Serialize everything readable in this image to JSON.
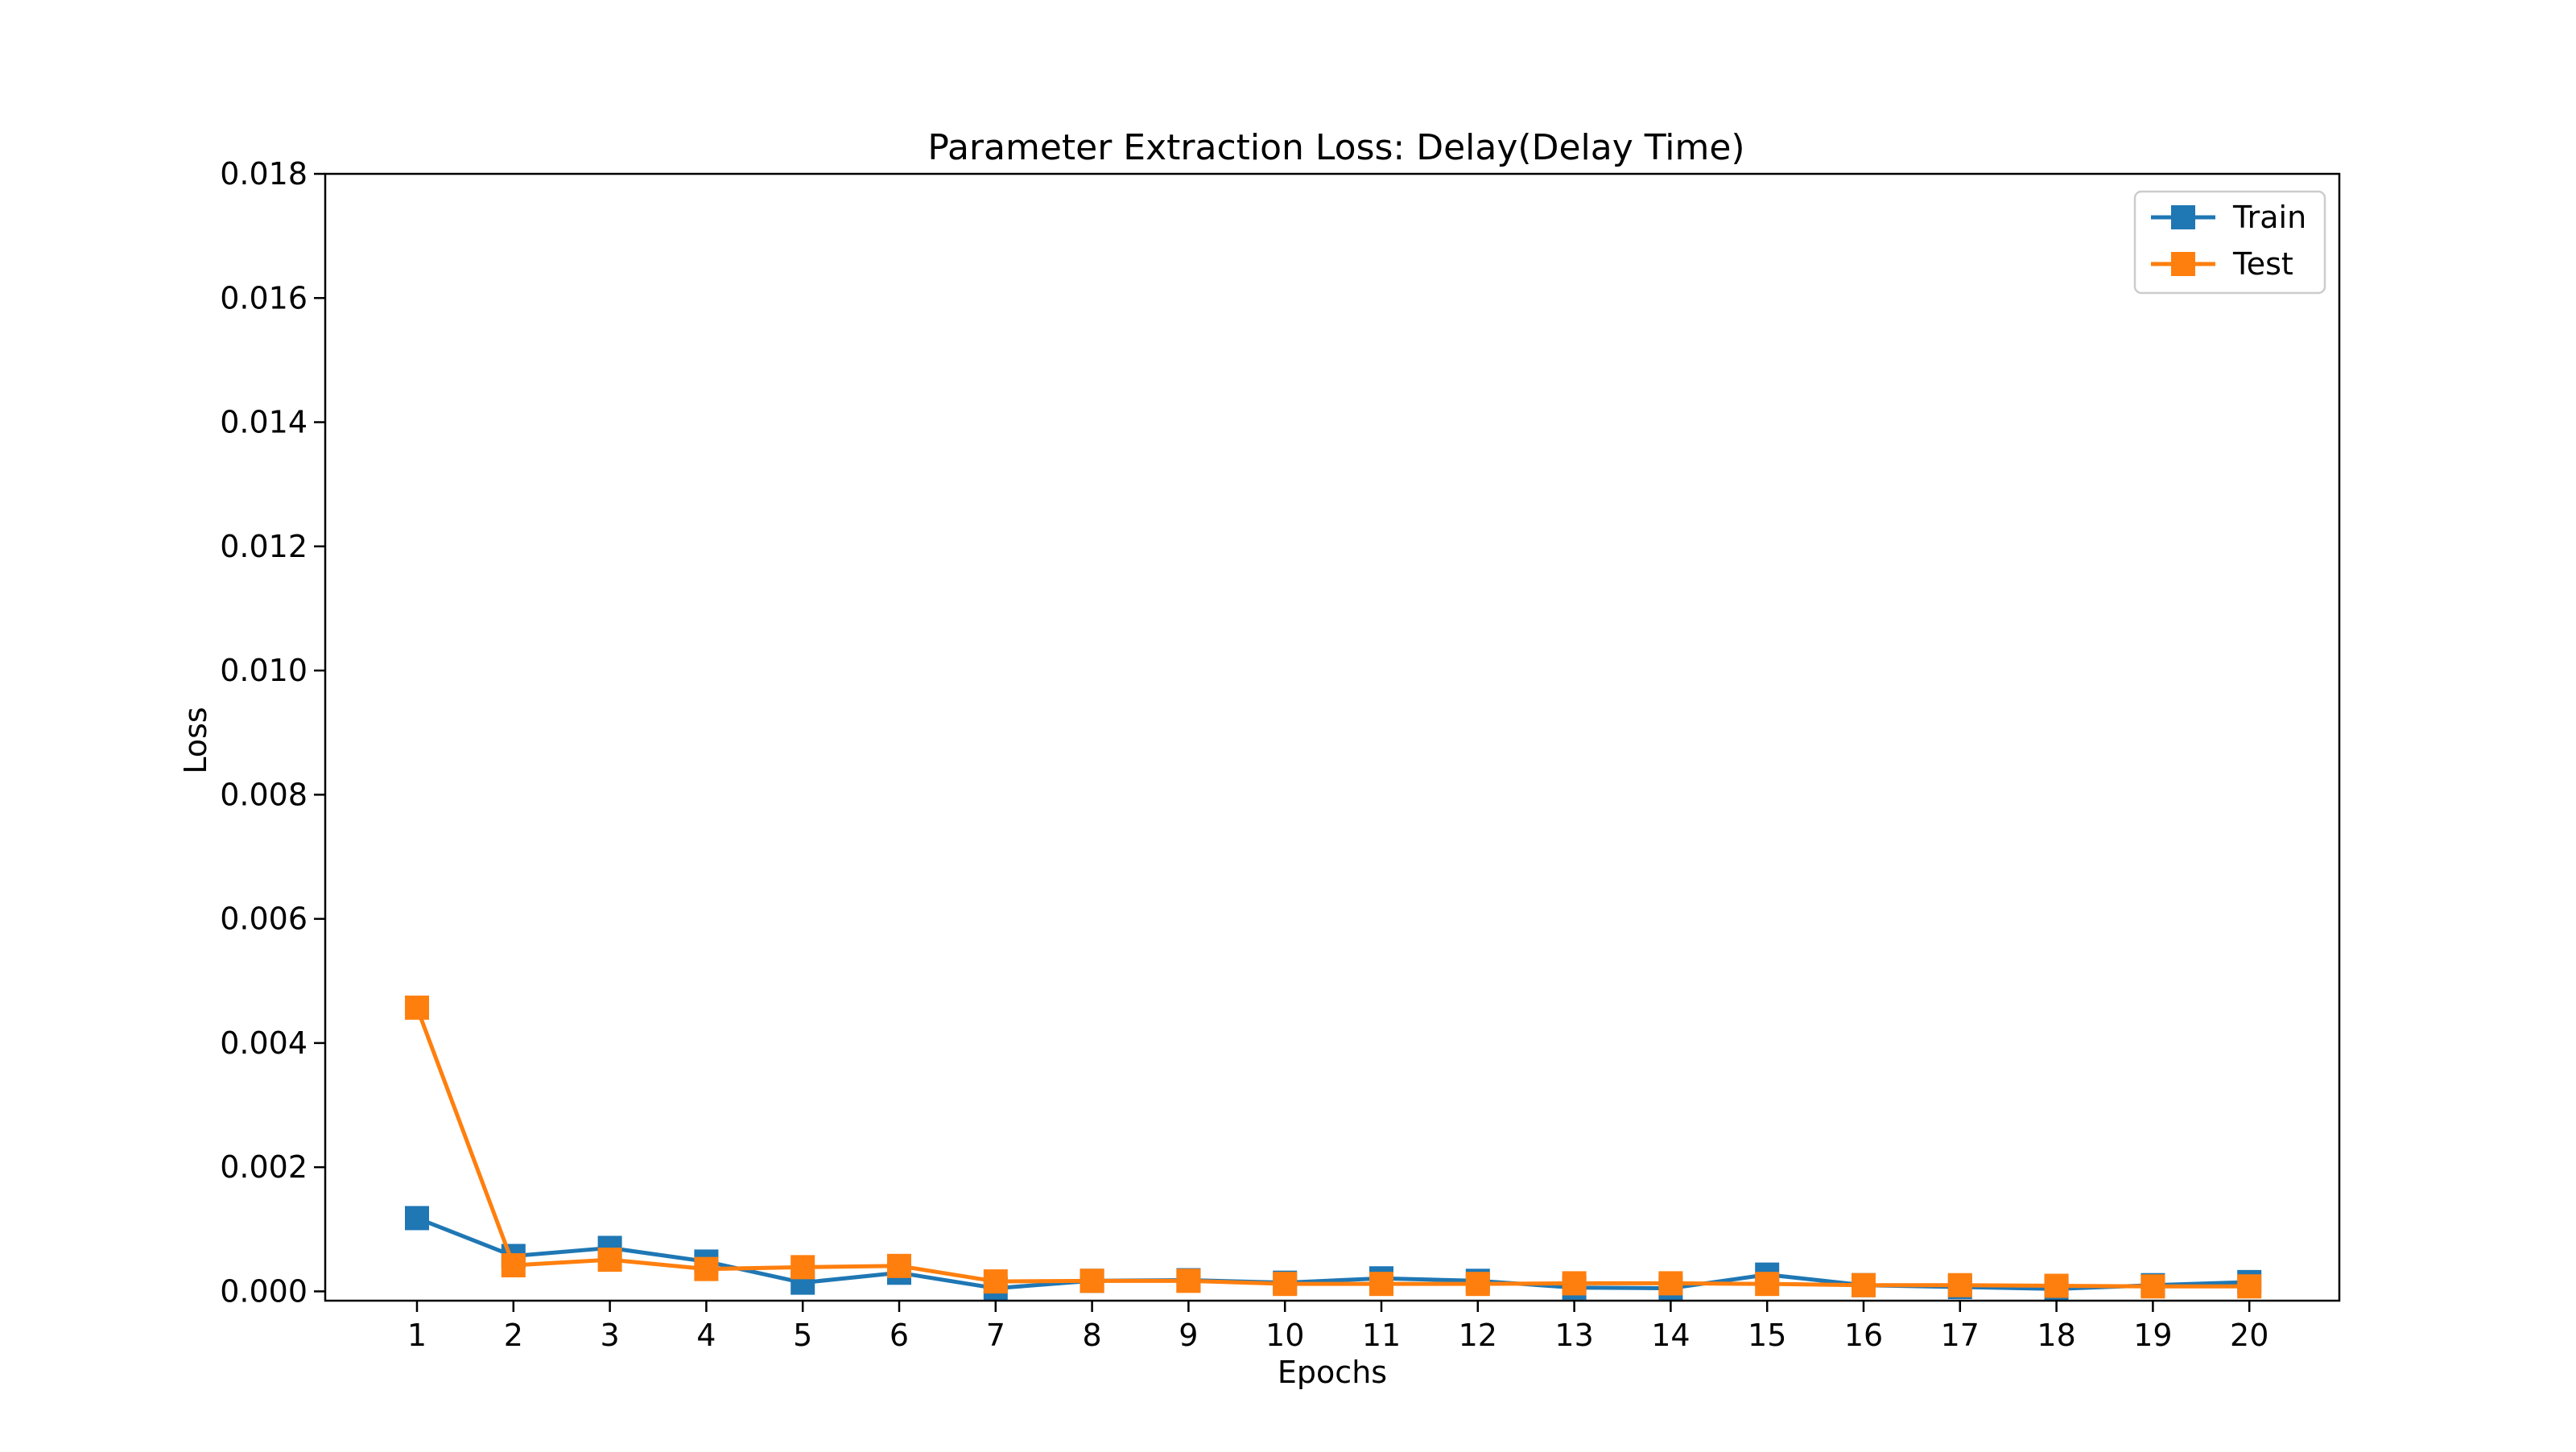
{
  "chart_data": {
    "type": "line",
    "title": "Parameter Extraction Loss: Delay(Delay Time)",
    "xlabel": "Epochs",
    "ylabel": "Loss",
    "x": [
      1,
      2,
      3,
      4,
      5,
      6,
      7,
      8,
      9,
      10,
      11,
      12,
      13,
      14,
      15,
      16,
      17,
      18,
      19,
      20
    ],
    "xticks": [
      "1",
      "2",
      "3",
      "4",
      "5",
      "6",
      "7",
      "8",
      "9",
      "10",
      "11",
      "12",
      "13",
      "14",
      "15",
      "16",
      "17",
      "18",
      "19",
      "20"
    ],
    "yticks": [
      "0.000",
      "0.002",
      "0.004",
      "0.006",
      "0.008",
      "0.010",
      "0.012",
      "0.014",
      "0.016",
      "0.018"
    ],
    "ylim": [
      -0.00015,
      0.018
    ],
    "grid": false,
    "legend_position": "top-right",
    "marker": "square",
    "series": [
      {
        "name": "Train",
        "color": "#1f77b4",
        "values": [
          0.00118,
          0.00057,
          0.0007,
          0.00048,
          0.00014,
          0.0003,
          5e-05,
          0.00017,
          0.00018,
          0.00014,
          0.00021,
          0.00017,
          6e-05,
          5e-05,
          0.00027,
          0.0001,
          7e-05,
          4e-05,
          0.0001,
          0.00015
        ]
      },
      {
        "name": "Test",
        "color": "#ff7f0e",
        "values": [
          0.00457,
          0.00042,
          0.00051,
          0.00036,
          0.00039,
          0.00041,
          0.00016,
          0.00017,
          0.00017,
          0.00012,
          0.00012,
          0.00012,
          0.00013,
          0.00013,
          0.00012,
          0.0001,
          0.0001,
          9e-05,
          8e-05,
          8e-05
        ]
      }
    ]
  }
}
